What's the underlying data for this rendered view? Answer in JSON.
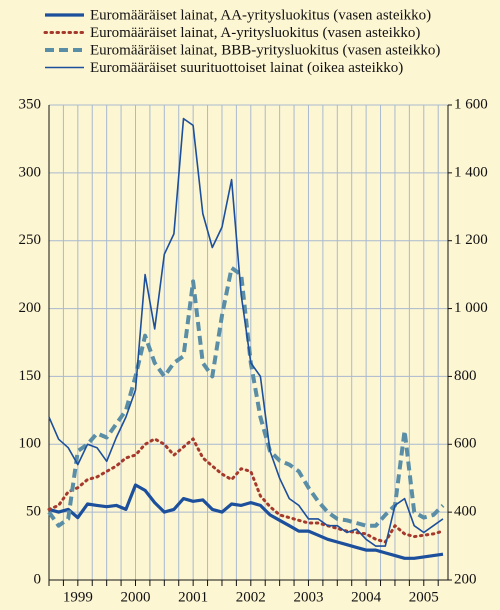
{
  "chart_data": {
    "type": "line",
    "background": "#fdf6d3",
    "x": [
      1999.0,
      1999.167,
      1999.333,
      1999.5,
      1999.667,
      1999.833,
      2000.0,
      2000.167,
      2000.333,
      2000.5,
      2000.667,
      2000.833,
      2001.0,
      2001.167,
      2001.333,
      2001.5,
      2001.667,
      2001.833,
      2002.0,
      2002.167,
      2002.333,
      2002.5,
      2002.667,
      2002.833,
      2003.0,
      2003.167,
      2003.333,
      2003.5,
      2003.667,
      2003.833,
      2004.0,
      2004.167,
      2004.333,
      2004.5,
      2004.667,
      2004.833,
      2005.0,
      2005.167,
      2005.333,
      2005.5,
      2005.667,
      2005.833
    ],
    "xlim": [
      1999,
      2005.92
    ],
    "xticks": [
      {
        "value": 1999.5,
        "label": "1999"
      },
      {
        "value": 2000.5,
        "label": "2000"
      },
      {
        "value": 2001.5,
        "label": "2001"
      },
      {
        "value": 2002.5,
        "label": "2002"
      },
      {
        "value": 2003.5,
        "label": "2003"
      },
      {
        "value": 2004.5,
        "label": "2004"
      },
      {
        "value": 2005.5,
        "label": "2005"
      }
    ],
    "xgrid": [
      1999.0,
      1999.25,
      1999.5,
      1999.75,
      2000.0,
      2000.25,
      2000.5,
      2000.75,
      2001.0,
      2001.25,
      2001.5,
      2001.75,
      2002.0,
      2002.25,
      2002.5,
      2002.75,
      2003.0,
      2003.25,
      2003.5,
      2003.75,
      2004.0,
      2004.25,
      2004.5,
      2004.75,
      2005.0,
      2005.25,
      2005.5,
      2005.75
    ],
    "ylim": [
      0,
      350
    ],
    "yticks": [
      0,
      50,
      100,
      150,
      200,
      250,
      300,
      350
    ],
    "y2lim": [
      200,
      1600
    ],
    "y2ticks": [
      200,
      400,
      600,
      800,
      {
        "value": 1000,
        "label": "1 000"
      },
      {
        "value": 1200,
        "label": "1 200"
      },
      {
        "value": 1400,
        "label": "1 400"
      },
      {
        "value": 1600,
        "label": "1 600"
      }
    ],
    "grid": true,
    "grid_color": "#a9b9cf",
    "series": [
      {
        "name": "Euromääräiset lainat, AA-yritysluokitus (vasen asteikko)",
        "color": "#1c4f9c",
        "style": "solid",
        "width": 3.2,
        "values": [
          52,
          50,
          52,
          46,
          56,
          55,
          54,
          55,
          52,
          70,
          66,
          57,
          50,
          52,
          60,
          58,
          59,
          52,
          50,
          56,
          55,
          57,
          55,
          48,
          44,
          40,
          36,
          36,
          33,
          30,
          28,
          26,
          24,
          22,
          22,
          20,
          18,
          16,
          16,
          17,
          18,
          19
        ]
      },
      {
        "name": "Euromääräiset lainat, A-yritysluokitus (vasen asteikko)",
        "color": "#a53a2c",
        "style": "dotted",
        "width": 3,
        "values": [
          52,
          55,
          65,
          68,
          74,
          76,
          80,
          84,
          90,
          92,
          100,
          104,
          100,
          92,
          98,
          104,
          90,
          84,
          78,
          74,
          82,
          80,
          62,
          54,
          48,
          46,
          44,
          42,
          42,
          40,
          38,
          36,
          35,
          34,
          30,
          28,
          40,
          34,
          32,
          33,
          34,
          36
        ]
      },
      {
        "name": "Euromääräiset lainat, BBB-yritysluokitus (vasen asteikko)",
        "color": "#5a8ea6",
        "style": "dashed",
        "width": 4,
        "values": [
          50,
          40,
          45,
          95,
          100,
          108,
          105,
          115,
          125,
          150,
          180,
          160,
          150,
          160,
          165,
          220,
          160,
          150,
          195,
          230,
          225,
          160,
          120,
          95,
          88,
          85,
          80,
          68,
          58,
          50,
          45,
          44,
          42,
          40,
          40,
          48,
          55,
          110,
          50,
          46,
          48,
          55
        ]
      },
      {
        "name": "Euromääräiset suurituottoiset lainat (oikea asteikko)",
        "color": "#1c4f9c",
        "style": "solid",
        "width": 1.6,
        "axis": "y2",
        "values": [
          680,
          615,
          590,
          540,
          600,
          590,
          550,
          620,
          680,
          760,
          1100,
          940,
          1160,
          1220,
          1560,
          1540,
          1280,
          1180,
          1240,
          1380,
          1040,
          840,
          800,
          580,
          500,
          440,
          420,
          380,
          380,
          360,
          360,
          340,
          350,
          320,
          300,
          300,
          420,
          440,
          360,
          340,
          360,
          380
        ]
      }
    ]
  }
}
